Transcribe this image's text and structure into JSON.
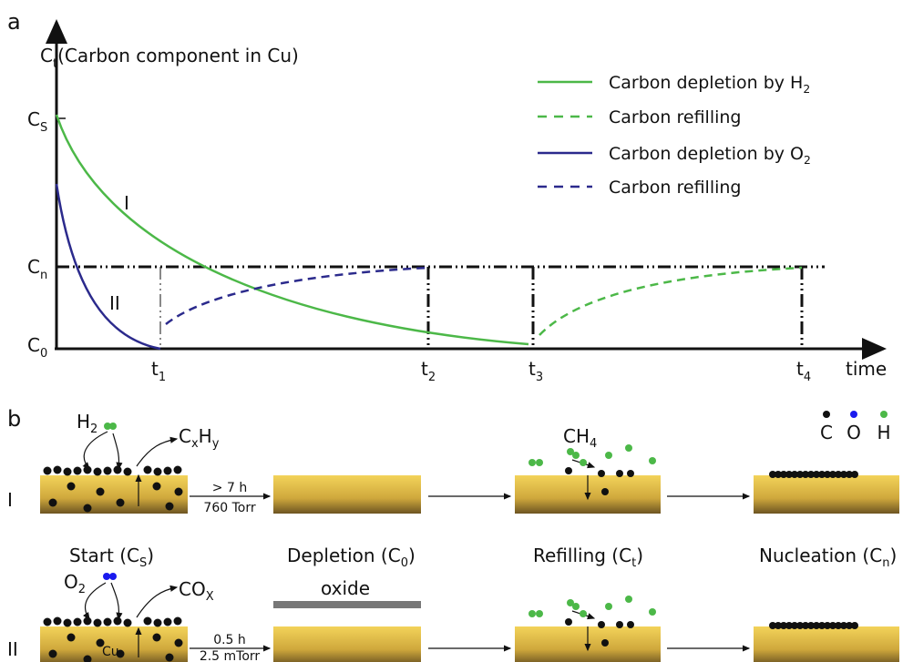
{
  "panel_a": {
    "label": "a",
    "y_axis": {
      "main": "C",
      "sub": "t",
      "rest": "(Carbon component in Cu)"
    },
    "y_ticks": [
      {
        "main": "C",
        "sub": "S"
      },
      {
        "main": "C",
        "sub": "n"
      },
      {
        "main": "C",
        "sub": "0"
      }
    ],
    "x_ticks": [
      {
        "main": "t",
        "sub": "1"
      },
      {
        "main": "t",
        "sub": "2"
      },
      {
        "main": "t",
        "sub": "3"
      },
      {
        "main": "t",
        "sub": "4"
      }
    ],
    "x_axis": "time",
    "curve_labels": [
      "I",
      "II"
    ],
    "legend": [
      {
        "main": "Carbon depletion by H",
        "sub": "2"
      },
      {
        "main": "Carbon refilling"
      },
      {
        "main": "Carbon depletion by O",
        "sub": "2"
      },
      {
        "main": "Carbon refilling"
      }
    ]
  },
  "panel_b": {
    "label": "b",
    "rows": [
      "I",
      "II"
    ],
    "stages": [
      {
        "main": "Start (C",
        "sub": "S",
        "end": ")"
      },
      {
        "main": "Depletion (C",
        "sub": "0",
        "end": ")"
      },
      {
        "main": "Refilling (C",
        "sub": "t",
        "end": ")"
      },
      {
        "main": "Nucleation (C",
        "sub": "n",
        "end": ")"
      }
    ],
    "species": {
      "h2": {
        "main": "H",
        "sub": "2"
      },
      "cxhy": {
        "a": "C",
        "b": "x",
        "c": "H",
        "d": "y"
      },
      "ch4": {
        "main": "CH",
        "sub": "4"
      },
      "o2": {
        "main": "O",
        "sub": "2"
      },
      "cox": {
        "main": "CO",
        "sub": "X"
      },
      "cu": "Cu",
      "oxide": "oxide"
    },
    "conditions": [
      [
        "> 7 h",
        "760 Torr"
      ],
      [
        "0.5 h",
        "2.5 mTorr"
      ]
    ],
    "legend": [
      "C",
      "O",
      "H"
    ]
  }
}
